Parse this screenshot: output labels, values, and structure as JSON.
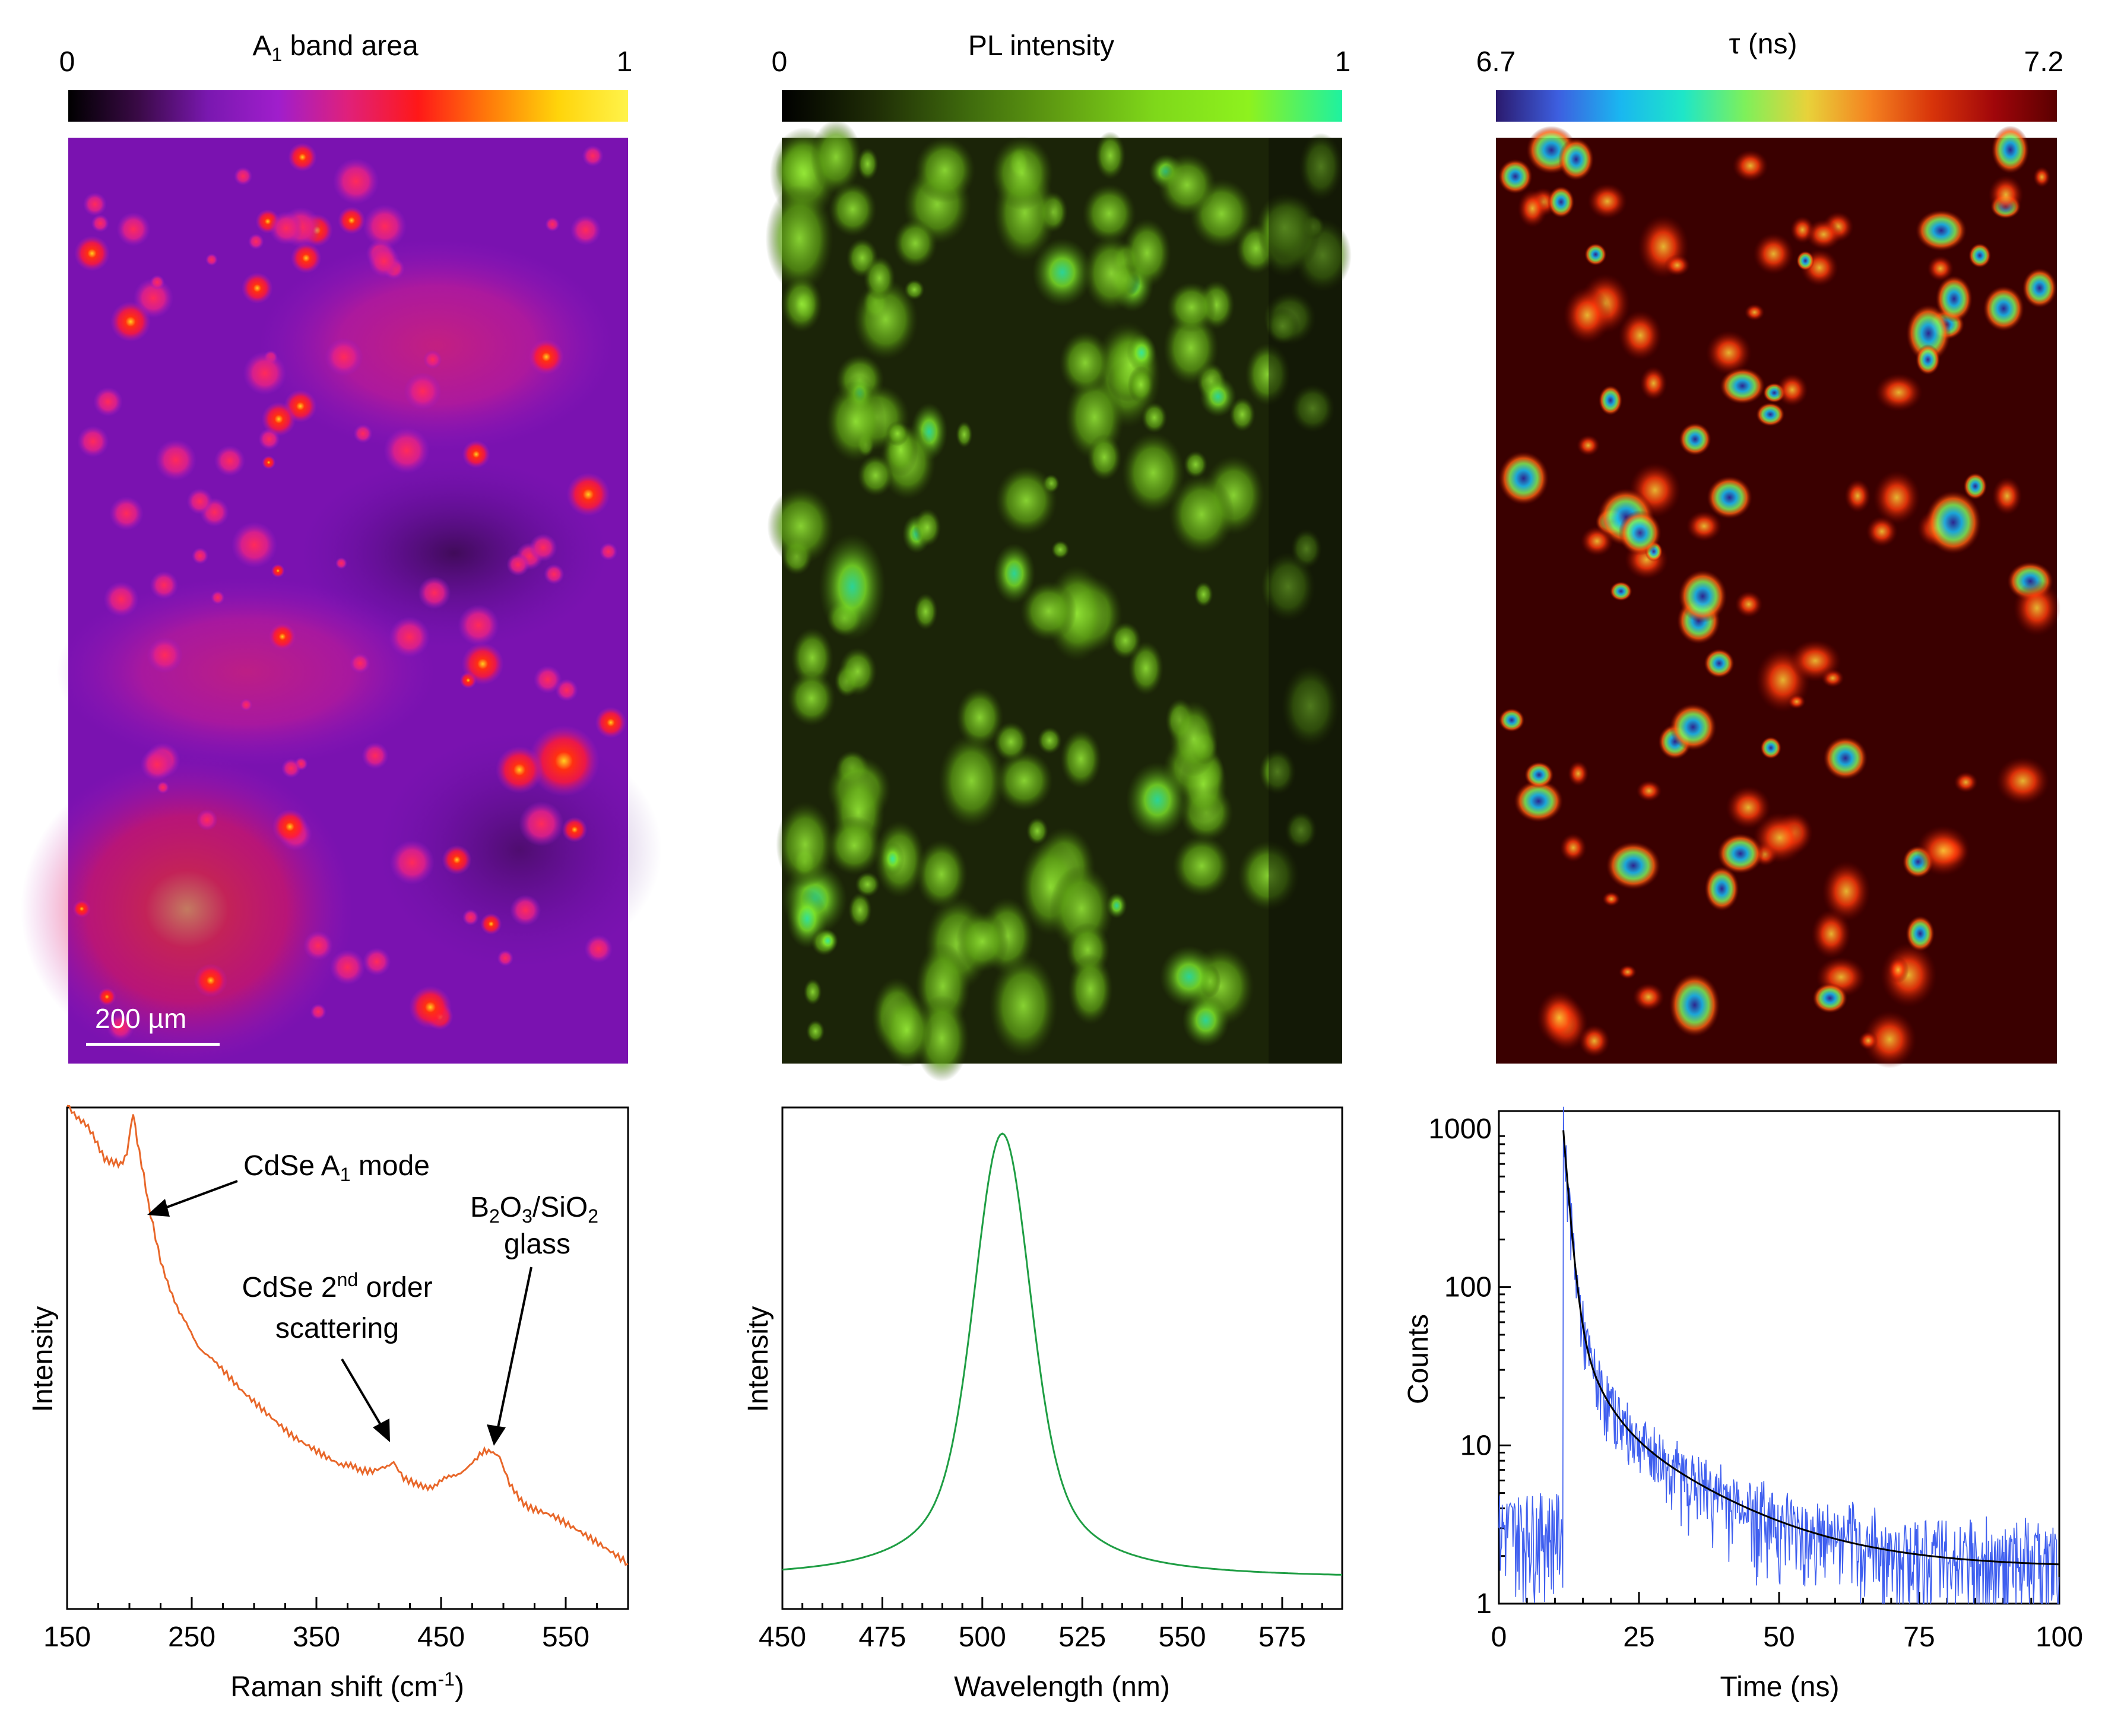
{
  "colorbars": [
    {
      "title_main": "A",
      "title_sub": "1",
      "title_rest": " band area",
      "min_label": "0",
      "max_label": "1",
      "stops": [
        "#000000",
        "#3a0a46",
        "#7a18b0",
        "#a01ecc",
        "#e0207a",
        "#ff1818",
        "#ff7a0a",
        "#ffd40a",
        "#fff34a"
      ]
    },
    {
      "title": "PL intensity",
      "min_label": "0",
      "max_label": "1",
      "stops": [
        "#000000",
        "#1f2d06",
        "#3f6b0d",
        "#62a012",
        "#7fd81a",
        "#8ef21e",
        "#1ef2a0"
      ]
    },
    {
      "title": "τ (ns)",
      "min_label": "6.7",
      "max_label": "7.2",
      "stops": [
        "#2b1a6e",
        "#3d5fe0",
        "#1ab7f0",
        "#1ee6c8",
        "#7ef05a",
        "#e8d23a",
        "#f48220",
        "#d8340a",
        "#a0060a",
        "#5a0000"
      ]
    }
  ],
  "maps": {
    "raman_bg": "#7a12b0",
    "pl_bg": "#1b2408",
    "tau_bg": "#3a0000",
    "scalebar_label": "200 µm"
  },
  "chart_data": [
    {
      "type": "line",
      "name": "raman",
      "x": [
        150,
        165,
        180,
        193,
        198,
        203,
        208,
        215,
        225,
        240,
        255,
        270,
        290,
        310,
        330,
        350,
        370,
        385,
        395,
        405,
        412,
        420,
        430,
        445,
        460,
        475,
        483,
        490,
        497,
        505,
        520,
        540,
        560,
        580,
        600
      ],
      "y": [
        0.88,
        0.84,
        0.78,
        0.76,
        0.79,
        0.86,
        0.79,
        0.69,
        0.58,
        0.48,
        0.42,
        0.38,
        0.33,
        0.29,
        0.25,
        0.22,
        0.19,
        0.18,
        0.18,
        0.19,
        0.19,
        0.16,
        0.15,
        0.15,
        0.17,
        0.19,
        0.21,
        0.22,
        0.2,
        0.15,
        0.11,
        0.09,
        0.06,
        0.03,
        0.0
      ],
      "xlabel": "Raman shift (cm⁻¹)",
      "ylabel": "Intensity",
      "xlim": [
        150,
        600
      ],
      "xticks": [
        "150",
        "250",
        "350",
        "450",
        "550"
      ],
      "color": "#e8672a",
      "annotations": [
        {
          "text": "CdSe A₁ mode",
          "x": 203,
          "y": 0.86
        },
        {
          "text": "CdSe 2nd order scattering",
          "x": 410,
          "y": 0.19
        },
        {
          "text": "B₂O₃/SiO₂ glass",
          "x": 490,
          "y": 0.22
        }
      ]
    },
    {
      "type": "line",
      "name": "pl",
      "xlabel": "Wavelength (nm)",
      "ylabel": "Intensity",
      "xlim": [
        450,
        590
      ],
      "xticks": [
        "450",
        "475",
        "500",
        "525",
        "550",
        "575"
      ],
      "peak_nm": 505,
      "color": "#1f9e44"
    },
    {
      "type": "line",
      "name": "decay",
      "xlabel": "Time (ns)",
      "ylabel": "Counts",
      "xlim": [
        0,
        100
      ],
      "ylim": [
        1,
        1000
      ],
      "yscale": "log",
      "xticks": [
        "0",
        "25",
        "50",
        "75",
        "100"
      ],
      "yticks": [
        "1",
        "10",
        "100",
        "1000"
      ],
      "series": [
        {
          "color": "#3f5fef"
        },
        {
          "color": "#000000"
        }
      ]
    }
  ]
}
